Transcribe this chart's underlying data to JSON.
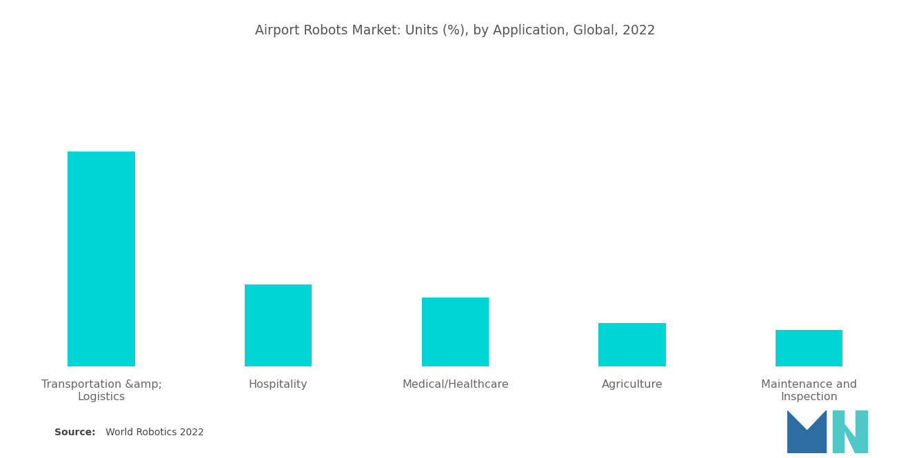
{
  "title": "Airport Robots Market: Units (%), by Application, Global, 2022",
  "categories": [
    "Transportation &amp;\nLogistics",
    "Hospitality",
    "Medical/Healthcare",
    "Agriculture",
    "Maintenance and\nInspection"
  ],
  "values": [
    100,
    38,
    32,
    20,
    17
  ],
  "bar_color": "#00D5D5",
  "background_color": "#ffffff",
  "title_fontsize": 13.5,
  "label_fontsize": 11.5,
  "source_bold": "Source:",
  "source_rest": "   World Robotics 2022",
  "logo_blue": "#2E6DA4",
  "logo_teal": "#4EC8C8"
}
